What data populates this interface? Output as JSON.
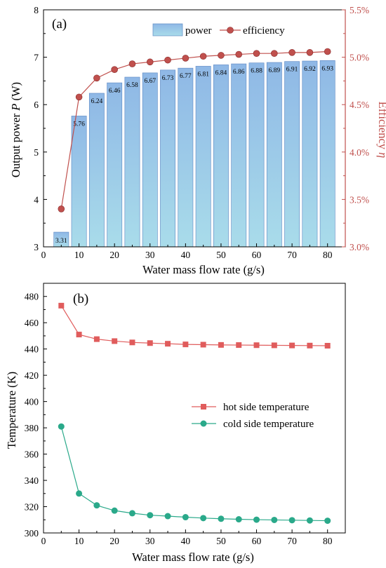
{
  "chart_data": [
    {
      "panel_label": "(a)",
      "type": "bar+line",
      "xlabel": "Water mass flow rate (g/s)",
      "ylabel_left_prefix": "Output power ",
      "ylabel_left_italic": "P",
      "ylabel_left_suffix": " (W)",
      "ylabel_right_prefix": "Efficiency ",
      "ylabel_right_italic": "η",
      "xlim": [
        0,
        85
      ],
      "x_ticks": [
        "0",
        "10",
        "20",
        "30",
        "40",
        "50",
        "60",
        "70",
        "80"
      ],
      "ylim_left": [
        3,
        8
      ],
      "y_left_ticks": [
        "3",
        "4",
        "5",
        "6",
        "7",
        "8"
      ],
      "ylim_right": [
        0.03,
        0.055
      ],
      "y_right_ticks": [
        "3.0%",
        "3.5%",
        "4.0%",
        "4.5%",
        "5.0%",
        "5.5%"
      ],
      "x": [
        5,
        10,
        15,
        20,
        25,
        30,
        35,
        40,
        45,
        50,
        55,
        60,
        65,
        70,
        75,
        80
      ],
      "series": [
        {
          "name": "power",
          "kind": "bar",
          "axis": "left",
          "values": [
            3.31,
            5.76,
            6.24,
            6.46,
            6.58,
            6.67,
            6.73,
            6.77,
            6.81,
            6.84,
            6.86,
            6.88,
            6.89,
            6.91,
            6.92,
            6.93
          ],
          "labels": [
            "3.31",
            "5.76",
            "6.24",
            "6.46",
            "6.58",
            "6.67",
            "6.73",
            "6.77",
            "6.81",
            "6.84",
            "6.86",
            "6.88",
            "6.89",
            "6.91",
            "6.92",
            "6.93"
          ],
          "color": "#9ecae9"
        },
        {
          "name": "efficiency",
          "kind": "line",
          "axis": "right",
          "values": [
            0.034,
            0.0458,
            0.0478,
            0.0487,
            0.0493,
            0.0495,
            0.0497,
            0.0499,
            0.0501,
            0.0502,
            0.0503,
            0.0504,
            0.0504,
            0.0505,
            0.0505,
            0.0506
          ],
          "color": "#c0504d"
        }
      ],
      "legend_placement": "top-right",
      "grid": false
    },
    {
      "panel_label": "(b)",
      "type": "line",
      "xlabel": "Water mass flow rate (g/s)",
      "ylabel": "Temperature (K)",
      "xlim": [
        0,
        85
      ],
      "x_ticks": [
        "0",
        "10",
        "20",
        "30",
        "40",
        "50",
        "60",
        "70",
        "80"
      ],
      "ylim": [
        300,
        490
      ],
      "y_ticks": [
        "300",
        "320",
        "340",
        "360",
        "380",
        "400",
        "420",
        "440",
        "460",
        "480"
      ],
      "x": [
        5,
        10,
        15,
        20,
        25,
        30,
        35,
        40,
        45,
        50,
        55,
        60,
        65,
        70,
        75,
        80
      ],
      "series": [
        {
          "name": "hot side temperature",
          "marker": "square",
          "color": "#e05c5c",
          "values": [
            473,
            451,
            447.5,
            446,
            445,
            444.5,
            444,
            443.5,
            443.3,
            443.1,
            443,
            442.9,
            442.8,
            442.7,
            442.6,
            442.5
          ]
        },
        {
          "name": "cold side temperature",
          "marker": "circle",
          "color": "#2aa98a",
          "values": [
            381,
            330,
            321,
            317,
            315,
            313.5,
            312.8,
            312,
            311.3,
            310.8,
            310.4,
            310.1,
            309.9,
            309.7,
            309.5,
            309.3
          ]
        }
      ],
      "legend_placement": "middle-right",
      "grid": false
    }
  ]
}
